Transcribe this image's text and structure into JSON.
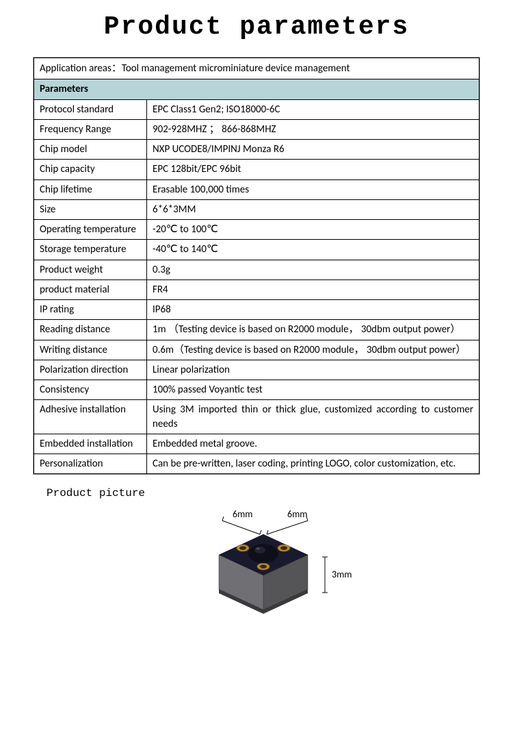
{
  "title": "Product parameters",
  "application_areas": "Application areas：Tool management microminiature device management",
  "parameters_header": "Parameters",
  "rows": [
    {
      "label": "Protocol standard",
      "value": "EPC Class1 Gen2; ISO18000-6C"
    },
    {
      "label": "Frequency Range",
      "value": "902-928MHZ ； 866-868MHZ"
    },
    {
      "label": "Chip model",
      "value": "NXP UCODE8/IMPINJ Monza R6"
    },
    {
      "label": "Chip capacity",
      "value": "EPC 128bit/EPC 96bit"
    },
    {
      "label": "Chip lifetime",
      "value": "Erasable 100,000 times"
    },
    {
      "label": "Size",
      "value": "6*6*3MM"
    },
    {
      "label": "Operating temperature",
      "value": "-20℃ to 100℃"
    },
    {
      "label": "Storage temperature",
      "value": "-40℃ to 140℃"
    },
    {
      "label": "Product weight",
      "value": "0.3g"
    },
    {
      "label": "product material",
      "value": "FR4"
    },
    {
      "label": "IP rating",
      "value": "IP68"
    },
    {
      "label": "Reading distance",
      "value": "1m （Testing device is based on R2000 module， 30dbm output power）",
      "justify": true
    },
    {
      "label": "Writing distance",
      "value": "0.6m（Testing device is based on R2000 module， 30dbm output power）",
      "justify": true
    },
    {
      "label": "Polarization direction",
      "value": "Linear polarization"
    },
    {
      "label": "Consistency",
      "value": "100% passed Voyantic test"
    },
    {
      "label": "Adhesive installation",
      "value": "Using 3M imported thin or thick glue, customized according to customer needs",
      "justify": true
    },
    {
      "label": "Embedded installation",
      "value": "Embedded metal groove."
    },
    {
      "label": "Personalization",
      "value": "Can be pre-written, laser coding, printing LOGO, color customization, etc.",
      "justify": true
    }
  ],
  "picture_label": "Product picture",
  "dimensions": {
    "width": "6mm",
    "depth": "6mm",
    "height": "3mm"
  },
  "colors": {
    "header_bg": "#b7d4d8",
    "border": "#000000",
    "text": "#000000",
    "chip_top": "#1a1a2a",
    "chip_side": "#6a6a6a",
    "chip_hole": "#b88a3a"
  }
}
